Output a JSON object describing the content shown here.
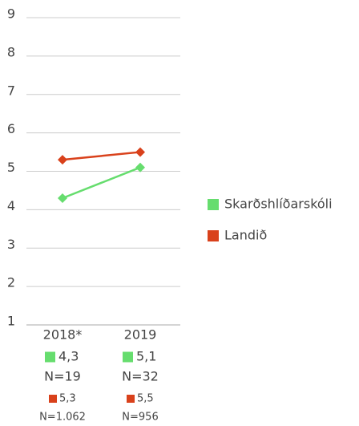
{
  "chart_data": {
    "type": "line",
    "categories": [
      "2018*",
      "2019"
    ],
    "series": [
      {
        "name": "Skarðshlíðarskóli",
        "color": "#66dd6e",
        "values": [
          4.3,
          5.1
        ],
        "value_labels": [
          "4,3",
          "5,1"
        ],
        "n_labels": [
          "N=19",
          "N=32"
        ]
      },
      {
        "name": "Landið",
        "color": "#d9411b",
        "values": [
          5.3,
          5.5
        ],
        "value_labels": [
          "5,3",
          "5,5"
        ],
        "n_labels": [
          "N=1.062",
          "N=956"
        ]
      }
    ],
    "ylim": [
      1,
      9
    ],
    "yticks": [
      1,
      2,
      3,
      4,
      5,
      6,
      7,
      8,
      9
    ],
    "grid": true,
    "legend": "right"
  }
}
